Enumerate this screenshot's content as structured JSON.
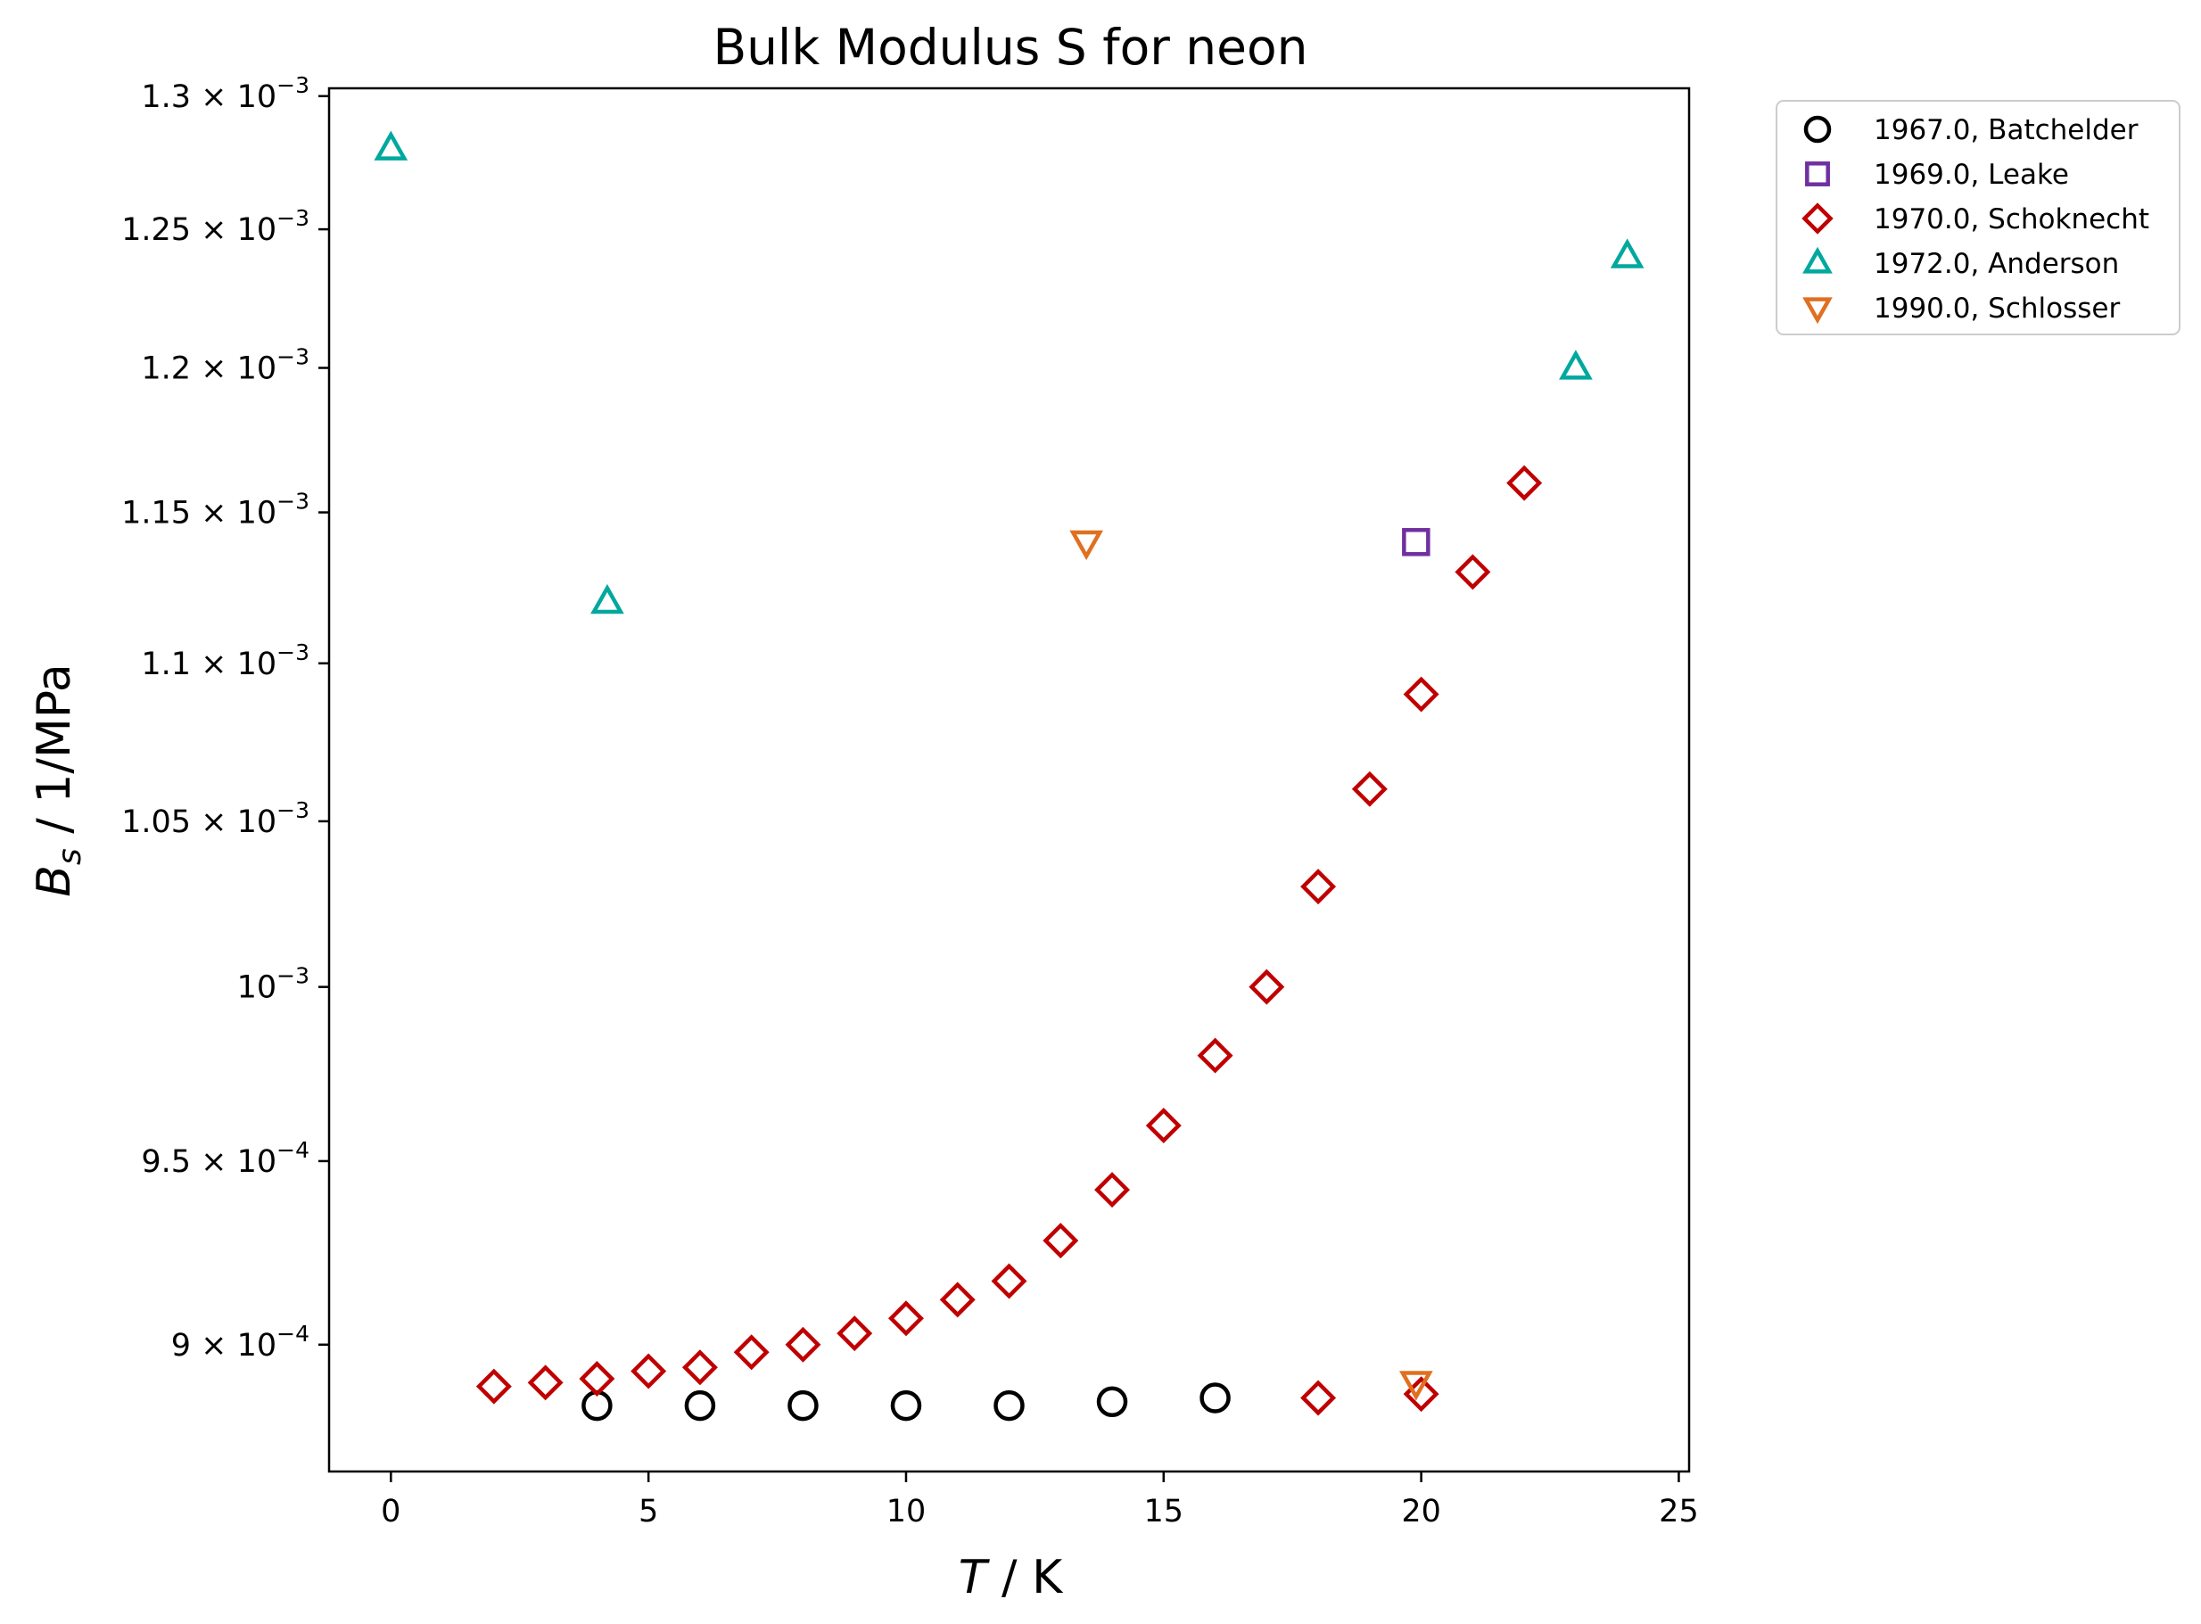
{
  "chart_data": {
    "type": "scatter",
    "title": "Bulk Modulus S for neon",
    "xlabel": {
      "main": "T",
      "suffix": " / K"
    },
    "ylabel": {
      "main": "B",
      "sub": "s",
      "suffix": " / 1/MPa"
    },
    "xlim": [
      -1.2,
      25.2
    ],
    "ylim": [
      0.000867,
      0.001303
    ],
    "yscale": "log",
    "x_ticks": [
      {
        "value": 0,
        "label": "0"
      },
      {
        "value": 5,
        "label": "5"
      },
      {
        "value": 10,
        "label": "10"
      },
      {
        "value": 15,
        "label": "15"
      },
      {
        "value": 20,
        "label": "20"
      },
      {
        "value": 25,
        "label": "25"
      }
    ],
    "y_ticks": [
      {
        "value": 0.0009,
        "mantissa": "9",
        "exponent": "−4"
      },
      {
        "value": 0.00095,
        "mantissa": "9.5",
        "exponent": "−4"
      },
      {
        "value": 0.001,
        "mantissa": "",
        "exponent": "−3"
      },
      {
        "value": 0.00105,
        "mantissa": "1.05",
        "exponent": "−3"
      },
      {
        "value": 0.0011,
        "mantissa": "1.1",
        "exponent": "−3"
      },
      {
        "value": 0.00115,
        "mantissa": "1.15",
        "exponent": "−3"
      },
      {
        "value": 0.0012,
        "mantissa": "1.2",
        "exponent": "−3"
      },
      {
        "value": 0.00125,
        "mantissa": "1.25",
        "exponent": "−3"
      },
      {
        "value": 0.0013,
        "mantissa": "1.3",
        "exponent": "−3"
      }
    ],
    "legend": {
      "placement": "outside-top-right"
    },
    "series": [
      {
        "name": "1967.0, Batchelder",
        "marker": "circle",
        "color": "#000000",
        "x": [
          4,
          6,
          8,
          10,
          12,
          14,
          16
        ],
        "y": [
          0.000884,
          0.000884,
          0.000884,
          0.000884,
          0.000884,
          0.000885,
          0.000886
        ]
      },
      {
        "name": "1969.0, Leake",
        "marker": "square",
        "color": "#7030a0",
        "x": [
          19.9
        ],
        "y": [
          0.00114
        ]
      },
      {
        "name": "1970.0, Schoknecht",
        "marker": "diamond",
        "color": "#c00000",
        "x": [
          2,
          3,
          4,
          5,
          6,
          7,
          8,
          9,
          10,
          11,
          12,
          13,
          14,
          15,
          16,
          17,
          18,
          19,
          20,
          21,
          22,
          18,
          20
        ],
        "y": [
          0.000889,
          0.00089,
          0.000891,
          0.000893,
          0.000894,
          0.000898,
          0.0009,
          0.000903,
          0.000907,
          0.000912,
          0.000917,
          0.000928,
          0.000942,
          0.00096,
          0.00098,
          0.001,
          0.00103,
          0.00106,
          0.00109,
          0.00113,
          0.00116,
          0.000886,
          0.000887
        ]
      },
      {
        "name": "1972.0, Anderson",
        "marker": "triangle-up",
        "color": "#00a89d",
        "x": [
          0,
          4.2,
          23,
          24
        ],
        "y": [
          0.00128,
          0.00112,
          0.0012,
          0.00124
        ]
      },
      {
        "name": "1990.0, Schlosser",
        "marker": "triangle-down",
        "color": "#e07020",
        "x": [
          13.5,
          19.9
        ],
        "y": [
          0.00114,
          0.00089
        ]
      }
    ]
  }
}
